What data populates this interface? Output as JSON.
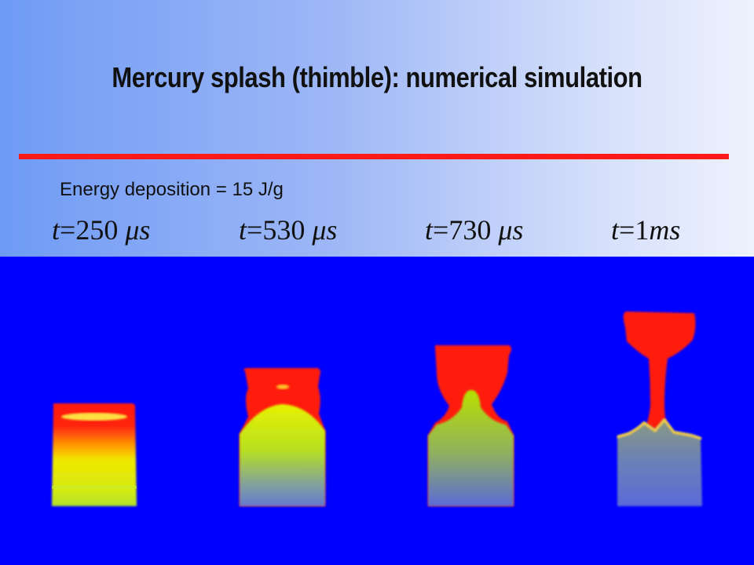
{
  "title": "Mercury splash (thimble): numerical simulation",
  "energy": {
    "label": "Energy deposition",
    "value": "= 15 J/g"
  },
  "times": [
    {
      "var": "t",
      "eq": "=",
      "value": "250",
      "unit": "μs"
    },
    {
      "var": "t",
      "eq": "=",
      "value": "530",
      "unit": "μs"
    },
    {
      "var": "t",
      "eq": "=",
      "value": "730",
      "unit": "μs"
    },
    {
      "var": "t",
      "eq": "=",
      "value": "1",
      "unit": "ms"
    }
  ],
  "colors": {
    "background": "#0000ff",
    "hot": "#ff1a1a",
    "mid": "#dcf000",
    "cool": "#5a6ad8",
    "rule": "#ff1a1a"
  }
}
